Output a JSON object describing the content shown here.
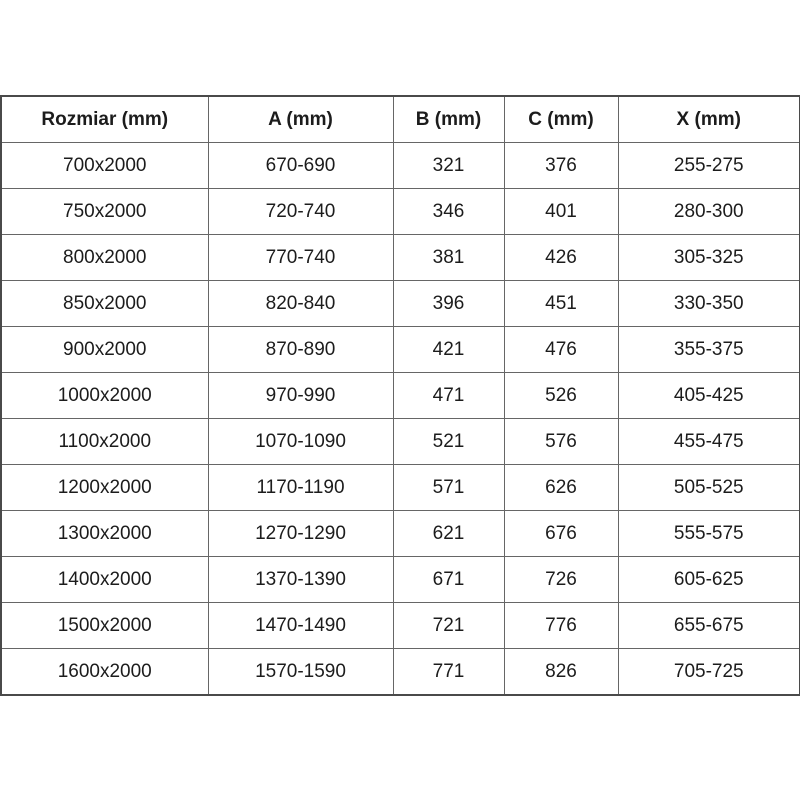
{
  "colors": {
    "background": "#ffffff",
    "border_outer": "#4a4a4a",
    "border_inner": "#666666",
    "text": "#1c1c1c"
  },
  "table": {
    "columns": [
      "Rozmiar (mm)",
      "A (mm)",
      "B (mm)",
      "C (mm)",
      "X (mm)"
    ],
    "rows": [
      [
        "700x2000",
        "670-690",
        "321",
        "376",
        "255-275"
      ],
      [
        "750x2000",
        "720-740",
        "346",
        "401",
        "280-300"
      ],
      [
        "800x2000",
        "770-740",
        "381",
        "426",
        "305-325"
      ],
      [
        "850x2000",
        "820-840",
        "396",
        "451",
        "330-350"
      ],
      [
        "900x2000",
        "870-890",
        "421",
        "476",
        "355-375"
      ],
      [
        "1000x2000",
        "970-990",
        "471",
        "526",
        "405-425"
      ],
      [
        "1100x2000",
        "1070-1090",
        "521",
        "576",
        "455-475"
      ],
      [
        "1200x2000",
        "1170-1190",
        "571",
        "626",
        "505-525"
      ],
      [
        "1300x2000",
        "1270-1290",
        "621",
        "676",
        "555-575"
      ],
      [
        "1400x2000",
        "1370-1390",
        "671",
        "726",
        "605-625"
      ],
      [
        "1500x2000",
        "1470-1490",
        "721",
        "776",
        "655-675"
      ],
      [
        "1600x2000",
        "1570-1590",
        "771",
        "826",
        "705-725"
      ]
    ]
  }
}
